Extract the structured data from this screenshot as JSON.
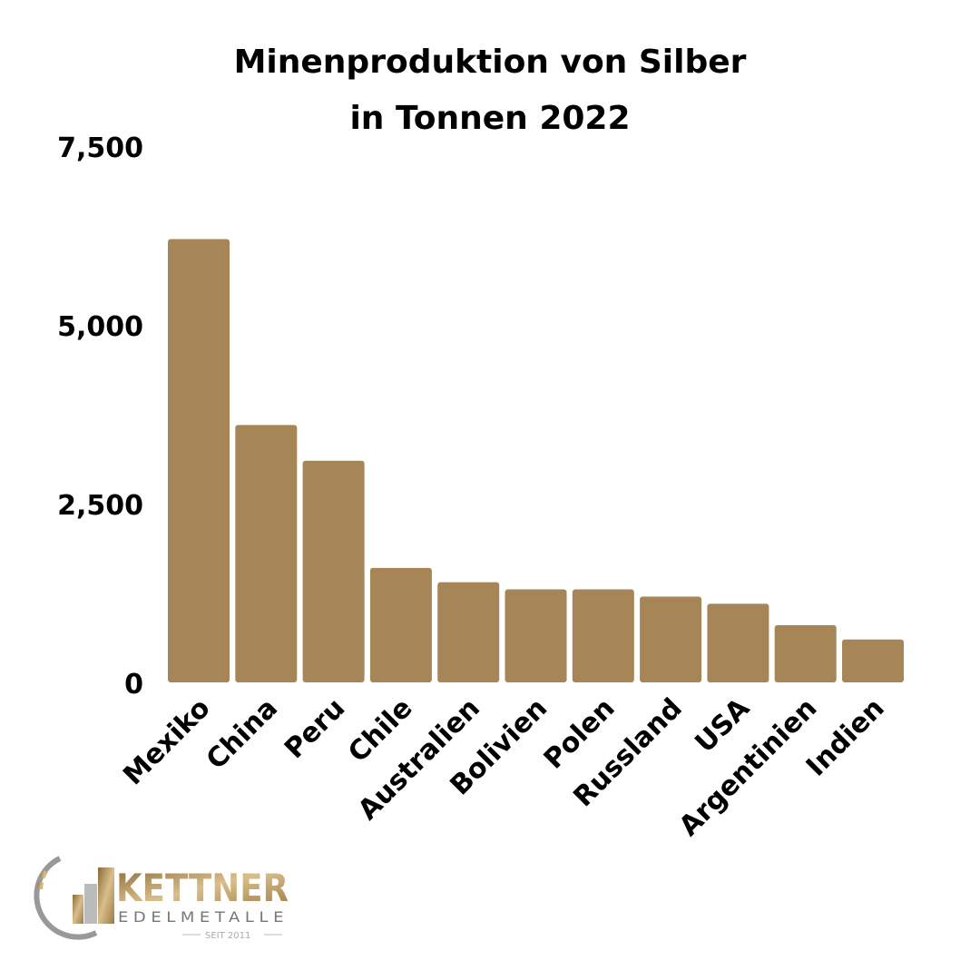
{
  "chart_data": {
    "type": "bar",
    "title": "Minenproduktion von Silber",
    "subtitle": "in Tonnen 2022",
    "categories": [
      "Mexiko",
      "China",
      "Peru",
      "Chile",
      "Australien",
      "Bolivien",
      "Polen",
      "Russland",
      "USA",
      "Argentinien",
      "Indien"
    ],
    "values": [
      6200,
      3600,
      3100,
      1600,
      1400,
      1300,
      1300,
      1200,
      1100,
      800,
      600
    ],
    "ylim": [
      0,
      7500
    ],
    "yticks": [
      0,
      2500,
      5000,
      7500
    ],
    "ytick_labels": [
      "0",
      "2,500",
      "5,000",
      "7,500"
    ],
    "xlabel": "",
    "ylabel": "",
    "grid": false,
    "bar_color": "#A68557"
  },
  "logo": {
    "name": "KETTNER",
    "sub": "EDELMETALLE",
    "since": "SEIT 2011"
  }
}
